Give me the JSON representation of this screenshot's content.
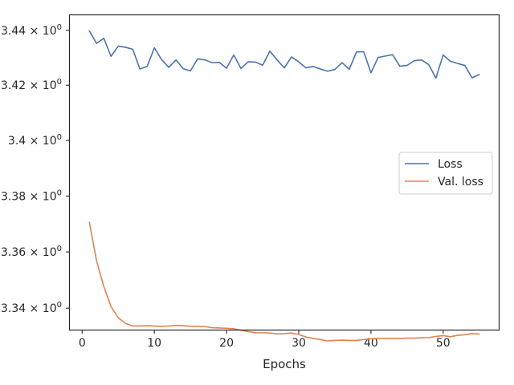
{
  "chart_data": {
    "type": "line",
    "title": "",
    "xlabel": "Epochs",
    "ylabel": "",
    "xlim": [
      -1.7,
      57.7
    ],
    "ylim": [
      3.3324,
      3.4455
    ],
    "y_scale": "log",
    "grid": false,
    "legend_position": "center-right",
    "x_ticks": [
      {
        "value": 0,
        "label": "0"
      },
      {
        "value": 10,
        "label": "10"
      },
      {
        "value": 20,
        "label": "20"
      },
      {
        "value": 30,
        "label": "30"
      },
      {
        "value": 40,
        "label": "40"
      },
      {
        "value": 50,
        "label": "50"
      }
    ],
    "y_ticks": [
      {
        "value": 3.34,
        "label": "3.34 × 10",
        "exp": "0"
      },
      {
        "value": 3.36,
        "label": "3.36 × 10",
        "exp": "0"
      },
      {
        "value": 3.38,
        "label": "3.38 × 10",
        "exp": "0"
      },
      {
        "value": 3.4,
        "label": "3.4 × 10",
        "exp": "0"
      },
      {
        "value": 3.42,
        "label": "3.42 × 10",
        "exp": "0"
      },
      {
        "value": 3.44,
        "label": "3.44 × 10",
        "exp": "0"
      }
    ],
    "x": [
      1,
      2,
      3,
      4,
      5,
      6,
      7,
      8,
      9,
      10,
      11,
      12,
      13,
      14,
      15,
      16,
      17,
      18,
      19,
      20,
      21,
      22,
      23,
      24,
      25,
      26,
      27,
      28,
      29,
      30,
      31,
      32,
      33,
      34,
      35,
      36,
      37,
      38,
      39,
      40,
      41,
      42,
      43,
      44,
      45,
      46,
      47,
      48,
      49,
      50,
      51,
      52,
      53,
      54,
      55
    ],
    "series": [
      {
        "name": "Loss",
        "color": "#4c72b0",
        "values": [
          3.4398,
          3.4352,
          3.4371,
          3.4305,
          3.4342,
          3.4338,
          3.4331,
          3.4259,
          3.4268,
          3.4336,
          3.4293,
          3.4265,
          3.4292,
          3.426,
          3.4252,
          3.4296,
          3.4292,
          3.4282,
          3.4283,
          3.4262,
          3.431,
          3.4261,
          3.4285,
          3.4284,
          3.4273,
          3.4324,
          3.4292,
          3.4263,
          3.4303,
          3.4285,
          3.4263,
          3.4268,
          3.4259,
          3.4251,
          3.4257,
          3.4282,
          3.4258,
          3.4321,
          3.4322,
          3.4245,
          3.4301,
          3.4306,
          3.4311,
          3.4269,
          3.4272,
          3.4289,
          3.4292,
          3.4275,
          3.4226,
          3.431,
          3.4287,
          3.4279,
          3.4272,
          3.4227,
          3.4239
        ]
      },
      {
        "name": "Val. loss",
        "color": "#dd8452",
        "values": [
          3.3706,
          3.3568,
          3.3477,
          3.3406,
          3.3366,
          3.3346,
          3.3337,
          3.3337,
          3.3338,
          3.3337,
          3.3336,
          3.3337,
          3.3339,
          3.3338,
          3.3336,
          3.3336,
          3.3335,
          3.3331,
          3.333,
          3.3329,
          3.3327,
          3.3322,
          3.3317,
          3.3313,
          3.3313,
          3.3312,
          3.3309,
          3.331,
          3.3312,
          3.3307,
          3.3298,
          3.3293,
          3.3289,
          3.3284,
          3.3286,
          3.3287,
          3.3286,
          3.3286,
          3.3289,
          3.3292,
          3.3293,
          3.3293,
          3.3293,
          3.3293,
          3.3294,
          3.3294,
          3.3295,
          3.3296,
          3.33,
          3.3303,
          3.3299,
          3.3304,
          3.3306,
          3.331,
          3.3309
        ]
      }
    ]
  }
}
